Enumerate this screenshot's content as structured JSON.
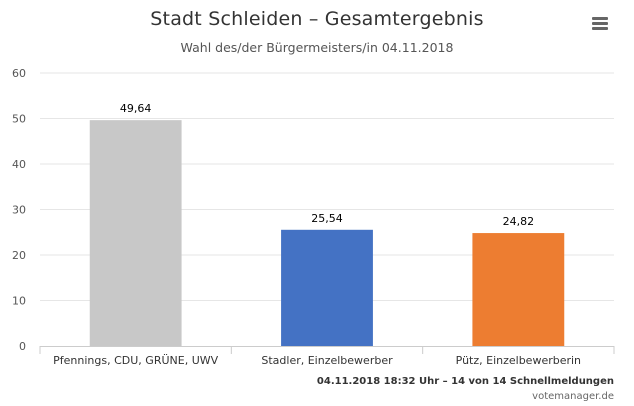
{
  "header": {
    "title": "Stadt Schleiden – Gesamtergebnis",
    "subtitle": "Wahl des/der Bürgermeisters/in 04.11.2018",
    "menu_icon": "hamburger-menu-icon"
  },
  "footer": {
    "status": "04.11.2018 18:32 Uhr – 14 von 14 Schnellmeldungen",
    "credit": "votemanager.de"
  },
  "chart_data": {
    "type": "bar",
    "title": "Stadt Schleiden – Gesamtergebnis",
    "subtitle": "Wahl des/der Bürgermeisters/in 04.11.2018",
    "categories": [
      "Pfennings, CDU, GRÜNE, UWV",
      "Stadler, Einzelbewerber",
      "Pütz, Einzelbewerberin"
    ],
    "values": [
      49.64,
      25.54,
      24.82
    ],
    "value_labels": [
      "49,64",
      "25,54",
      "24,82"
    ],
    "colors": [
      "#c8c8c8",
      "#4472c4",
      "#ed7d31"
    ],
    "ylim": [
      0,
      60
    ],
    "yticks": [
      0,
      10,
      20,
      30,
      40,
      50,
      60
    ],
    "grid": true,
    "legend": "none",
    "xlabel": "",
    "ylabel": ""
  }
}
